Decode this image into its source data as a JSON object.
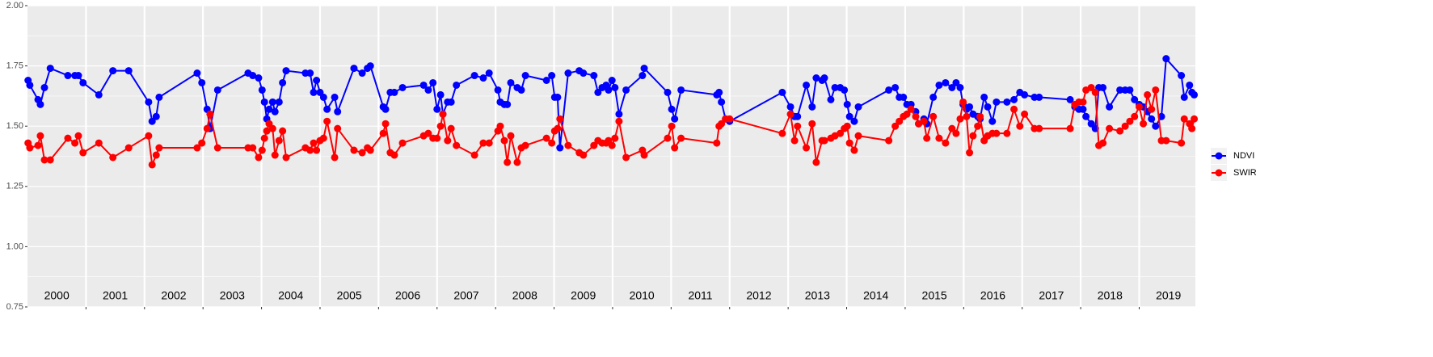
{
  "chart_data": {
    "type": "line",
    "x": [
      2000.01,
      2000.04,
      2000.18,
      2000.22,
      2000.29,
      2000.39,
      2000.69,
      2000.81,
      2000.87,
      2000.95,
      2001.22,
      2001.46,
      2001.73,
      2002.07,
      2002.13,
      2002.2,
      2002.25,
      2002.9,
      2002.98,
      2003.07,
      2003.12,
      2003.25,
      2003.77,
      2003.85,
      2003.95,
      2004.01,
      2004.05,
      2004.09,
      2004.13,
      2004.19,
      2004.23,
      2004.3,
      2004.36,
      2004.42,
      2004.75,
      2004.83,
      2004.89,
      2004.94,
      2005.0,
      2005.06,
      2005.12,
      2005.25,
      2005.3,
      2005.58,
      2005.72,
      2005.81,
      2005.86,
      2006.08,
      2006.12,
      2006.2,
      2006.27,
      2006.41,
      2006.77,
      2006.85,
      2006.93,
      2007.0,
      2007.06,
      2007.1,
      2007.18,
      2007.24,
      2007.33,
      2007.64,
      2007.79,
      2007.89,
      2008.04,
      2008.08,
      2008.15,
      2008.2,
      2008.26,
      2008.37,
      2008.44,
      2008.51,
      2008.87,
      2008.96,
      2009.01,
      2009.06,
      2009.1,
      2009.24,
      2009.43,
      2009.5,
      2009.68,
      2009.75,
      2009.82,
      2009.89,
      2009.93,
      2009.99,
      2010.04,
      2010.11,
      2010.23,
      2010.51,
      2010.54,
      2010.94,
      2011.01,
      2011.06,
      2011.17,
      2011.78,
      2011.82,
      2011.86,
      2011.93,
      2012.0,
      2012.9,
      2013.04,
      2013.11,
      2013.16,
      2013.31,
      2013.41,
      2013.48,
      2013.58,
      2013.62,
      2013.73,
      2013.8,
      2013.89,
      2013.96,
      2014.01,
      2014.05,
      2014.13,
      2014.2,
      2014.72,
      2014.83,
      2014.9,
      2014.97,
      2015.03,
      2015.1,
      2015.18,
      2015.23,
      2015.32,
      2015.37,
      2015.48,
      2015.58,
      2015.69,
      2015.8,
      2015.87,
      2015.94,
      2015.99,
      2016.05,
      2016.1,
      2016.16,
      2016.24,
      2016.28,
      2016.35,
      2016.41,
      2016.49,
      2016.56,
      2016.74,
      2016.86,
      2016.96,
      2017.04,
      2017.21,
      2017.29,
      2017.82,
      2017.9,
      2017.97,
      2018.04,
      2018.09,
      2018.18,
      2018.25,
      2018.31,
      2018.38,
      2018.49,
      2018.67,
      2018.76,
      2018.84,
      2018.92,
      2019.0,
      2019.07,
      2019.14,
      2019.21,
      2019.28,
      2019.38,
      2019.46,
      2019.72,
      2019.77,
      2019.86,
      2019.9,
      2019.94
    ],
    "series": [
      {
        "name": "NDVI",
        "color": "#0000ff",
        "values": [
          1.69,
          1.67,
          1.61,
          1.59,
          1.66,
          1.74,
          1.71,
          1.71,
          1.71,
          1.68,
          1.63,
          1.73,
          1.73,
          1.6,
          1.52,
          1.54,
          1.62,
          1.72,
          1.68,
          1.57,
          1.49,
          1.65,
          1.72,
          1.71,
          1.7,
          1.65,
          1.6,
          1.53,
          1.57,
          1.6,
          1.56,
          1.6,
          1.68,
          1.73,
          1.72,
          1.72,
          1.64,
          1.69,
          1.64,
          1.62,
          1.57,
          1.62,
          1.56,
          1.74,
          1.72,
          1.74,
          1.75,
          1.58,
          1.57,
          1.64,
          1.64,
          1.66,
          1.67,
          1.65,
          1.68,
          1.57,
          1.63,
          1.55,
          1.6,
          1.6,
          1.67,
          1.71,
          1.7,
          1.72,
          1.65,
          1.6,
          1.59,
          1.59,
          1.68,
          1.66,
          1.65,
          1.71,
          1.69,
          1.71,
          1.62,
          1.62,
          1.41,
          1.72,
          1.73,
          1.72,
          1.71,
          1.64,
          1.66,
          1.67,
          1.65,
          1.69,
          1.66,
          1.55,
          1.65,
          1.71,
          1.74,
          1.64,
          1.57,
          1.53,
          1.65,
          1.63,
          1.64,
          1.6,
          1.53,
          1.52,
          1.64,
          1.58,
          1.54,
          1.54,
          1.67,
          1.58,
          1.7,
          1.69,
          1.7,
          1.61,
          1.66,
          1.66,
          1.65,
          1.59,
          1.54,
          1.52,
          1.58,
          1.65,
          1.66,
          1.62,
          1.62,
          1.59,
          1.59,
          1.56,
          1.51,
          1.53,
          1.51,
          1.62,
          1.67,
          1.68,
          1.66,
          1.68,
          1.66,
          1.59,
          1.57,
          1.58,
          1.55,
          1.54,
          1.53,
          1.62,
          1.58,
          1.52,
          1.6,
          1.6,
          1.61,
          1.64,
          1.63,
          1.62,
          1.62,
          1.61,
          1.58,
          1.57,
          1.57,
          1.54,
          1.51,
          1.49,
          1.66,
          1.66,
          1.58,
          1.65,
          1.65,
          1.65,
          1.61,
          1.59,
          1.58,
          1.56,
          1.53,
          1.5,
          1.54,
          1.78,
          1.71,
          1.62,
          1.67,
          1.64,
          1.63
        ]
      },
      {
        "name": "SWIR",
        "color": "#ff0000",
        "values": [
          1.43,
          1.41,
          1.42,
          1.46,
          1.36,
          1.36,
          1.45,
          1.43,
          1.46,
          1.39,
          1.43,
          1.37,
          1.41,
          1.46,
          1.34,
          1.38,
          1.41,
          1.41,
          1.43,
          1.49,
          1.55,
          1.41,
          1.41,
          1.41,
          1.37,
          1.4,
          1.45,
          1.48,
          1.51,
          1.49,
          1.38,
          1.44,
          1.48,
          1.37,
          1.41,
          1.4,
          1.43,
          1.4,
          1.44,
          1.45,
          1.52,
          1.37,
          1.49,
          1.4,
          1.39,
          1.41,
          1.4,
          1.47,
          1.51,
          1.39,
          1.38,
          1.43,
          1.46,
          1.47,
          1.45,
          1.45,
          1.5,
          1.55,
          1.44,
          1.49,
          1.42,
          1.38,
          1.43,
          1.43,
          1.48,
          1.5,
          1.44,
          1.35,
          1.46,
          1.35,
          1.41,
          1.42,
          1.45,
          1.43,
          1.48,
          1.49,
          1.53,
          1.42,
          1.39,
          1.38,
          1.42,
          1.44,
          1.43,
          1.43,
          1.44,
          1.42,
          1.45,
          1.52,
          1.37,
          1.4,
          1.38,
          1.45,
          1.5,
          1.41,
          1.45,
          1.43,
          1.5,
          1.51,
          1.53,
          1.53,
          1.47,
          1.55,
          1.44,
          1.5,
          1.41,
          1.51,
          1.35,
          1.44,
          1.44,
          1.45,
          1.46,
          1.47,
          1.49,
          1.5,
          1.43,
          1.4,
          1.46,
          1.44,
          1.5,
          1.52,
          1.54,
          1.55,
          1.57,
          1.54,
          1.51,
          1.52,
          1.45,
          1.54,
          1.45,
          1.43,
          1.49,
          1.47,
          1.53,
          1.6,
          1.54,
          1.39,
          1.46,
          1.5,
          1.54,
          1.44,
          1.46,
          1.47,
          1.47,
          1.47,
          1.57,
          1.5,
          1.55,
          1.49,
          1.49,
          1.49,
          1.59,
          1.6,
          1.6,
          1.65,
          1.66,
          1.64,
          1.42,
          1.43,
          1.49,
          1.48,
          1.5,
          1.52,
          1.54,
          1.58,
          1.51,
          1.63,
          1.57,
          1.65,
          1.44,
          1.44,
          1.43,
          1.53,
          1.51,
          1.49,
          1.53
        ]
      }
    ],
    "xlim": [
      2000,
      2019.96
    ],
    "ylim": [
      0.75,
      2.0
    ],
    "yticks": [
      0.75,
      {
        "value": 1,
        "label": "1.00"
      },
      1.25,
      {
        "value": 1.5,
        "label": "1.50"
      },
      1.75,
      {
        "value": 2,
        "label": "2.00"
      }
    ],
    "y_minor_grid": [
      0.875,
      1.125,
      1.375,
      1.625,
      1.875
    ],
    "year_lines": [
      2001,
      2002,
      2003,
      2004,
      2005,
      2006,
      2007,
      2008,
      2009,
      2010,
      2011,
      2012,
      2013,
      2014,
      2015,
      2016,
      2017,
      2018,
      2019
    ],
    "xticks": [
      {
        "value": 2000.5,
        "label": "2000"
      },
      {
        "value": 2001.5,
        "label": "2001"
      },
      {
        "value": 2002.5,
        "label": "2002"
      },
      {
        "value": 2003.5,
        "label": "2003"
      },
      {
        "value": 2004.5,
        "label": "2004"
      },
      {
        "value": 2005.5,
        "label": "2005"
      },
      {
        "value": 2006.5,
        "label": "2006"
      },
      {
        "value": 2007.5,
        "label": "2007"
      },
      {
        "value": 2008.5,
        "label": "2008"
      },
      {
        "value": 2009.5,
        "label": "2009"
      },
      {
        "value": 2010.5,
        "label": "2010"
      },
      {
        "value": 2011.5,
        "label": "2011"
      },
      {
        "value": 2012.5,
        "label": "2012"
      },
      {
        "value": 2013.5,
        "label": "2013"
      },
      {
        "value": 2014.5,
        "label": "2014"
      },
      {
        "value": 2015.5,
        "label": "2015"
      },
      {
        "value": 2016.5,
        "label": "2016"
      },
      {
        "value": 2017.5,
        "label": "2017"
      },
      {
        "value": 2018.5,
        "label": "2018"
      },
      {
        "value": 2019.5,
        "label": "2019"
      }
    ],
    "grid": true,
    "legend": "right"
  }
}
